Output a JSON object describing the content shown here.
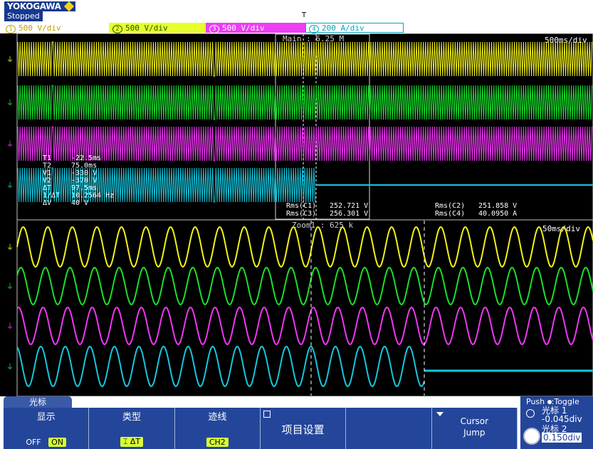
{
  "header": {
    "brand": "YOKOGAWA",
    "status": "Stopped",
    "trigger_marker": "T"
  },
  "channels": [
    {
      "num": "1",
      "label": "500 V/div",
      "suffix": "̃↑₃"
    },
    {
      "num": "2",
      "label": "500 V/div",
      "suffix": "̃↑₃"
    },
    {
      "num": "3",
      "label": "500 V/div",
      "suffix": "̃↑₃"
    },
    {
      "num": "4",
      "label": "200 A/div",
      "suffix": "̃↑₃"
    }
  ],
  "main_window": {
    "label": "Main : 6.25 M",
    "timebase": "500ms/div"
  },
  "zoom_window": {
    "label": "Zoom1 : 625 k",
    "timebase": "50ms/div"
  },
  "cursor_readout": [
    {
      "name": "T1",
      "value": "-22.5ms"
    },
    {
      "name": "T2",
      "value": "75.0ms"
    },
    {
      "name": "V1",
      "value": "-330 V"
    },
    {
      "name": "V2",
      "value": "-370 V"
    },
    {
      "name": "ΔT",
      "value": "97.5ms"
    },
    {
      "name": "1/ΔT",
      "value": "10.2564 Hz"
    },
    {
      "name": "ΔV",
      "value": "40 V"
    }
  ],
  "measurements": [
    {
      "label": "Rms(C1)",
      "value": "252.721 V"
    },
    {
      "label": "Rms(C3)",
      "value": "256.301 V"
    },
    {
      "label": "Rms(C2)",
      "value": "251.858 V"
    },
    {
      "label": "Rms(C4)",
      "value": "40.0950 A"
    }
  ],
  "softkeys": {
    "tab": "光标",
    "display": {
      "title": "显示",
      "off": "OFF",
      "on": "ON"
    },
    "type": {
      "title": "类型",
      "value": "⌶ ΔT"
    },
    "trace": {
      "title": "迹线",
      "value": "CH2"
    },
    "item_settings": {
      "title": "项目设置"
    },
    "cursor_jump": {
      "line1": "Cursor",
      "line2": "Jump"
    }
  },
  "side_panel": {
    "title": "Push",
    "toggle": "Toggle",
    "cursor1_label": "光标 1",
    "cursor1_value": "-0.045div",
    "cursor2_label": "光标 2",
    "cursor2_value": "0.150div"
  },
  "colors": {
    "ch1": "#f2f21b",
    "ch2": "#19e02d",
    "ch3": "#ef37f5",
    "ch4": "#17c7dd",
    "softkey_bg": "#24469a"
  }
}
